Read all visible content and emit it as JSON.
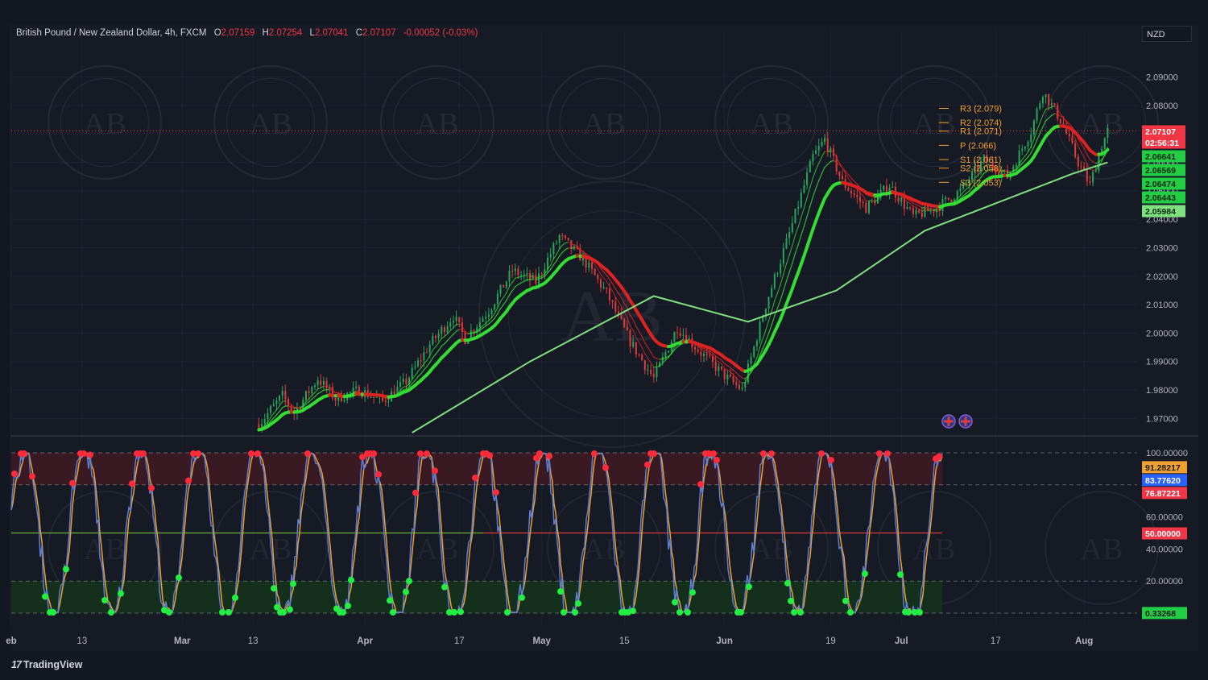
{
  "header": {
    "symbol": "British Pound / New Zealand Dollar, 4h, FXCM",
    "open_label": "O",
    "open": "2.07159",
    "high_label": "H",
    "high": "2.07254",
    "low_label": "L",
    "low": "2.07041",
    "close_label": "C",
    "close": "2.07107",
    "change": "-0.00052 (-0.03%)"
  },
  "currency_selector": "NZD",
  "branding": {
    "logo_text": "TradingView",
    "watermark": "AB"
  },
  "colors": {
    "background": "#131722",
    "grid": "#1f2330",
    "bull_candle": "#26a65b",
    "bear_candle": "#e03a3a",
    "ema_green": "#33dd33",
    "ema_red": "#dd2222",
    "long_ma": "#7ee07e",
    "pivot_label": "#f0a030",
    "stoch_k": "#5b7fd6",
    "stoch_d": "#f0a030",
    "overbought_zone": "#3a1a22",
    "oversold_zone": "#14301c"
  },
  "chart_data": [
    {
      "type": "line",
      "name": "price",
      "ylim": [
        1.965,
        2.095
      ],
      "y_ticks": [
        "2.09000",
        "2.08000",
        "2.07000",
        "2.06000",
        "2.05000",
        "2.04000",
        "2.03000",
        "2.02000",
        "2.01000",
        "2.00000",
        "1.99000",
        "1.98000",
        "1.97000"
      ],
      "x_ticks": [
        "eb",
        "13",
        "Mar",
        "13",
        "Apr",
        "17",
        "May",
        "15",
        "Jun",
        "19",
        "Jul",
        "17",
        "Aug"
      ],
      "x_domain": [
        "2024-02-01",
        "2024-08-10"
      ],
      "x_tick_dates": [
        "2024-02-01",
        "2024-02-13",
        "2024-03-01",
        "2024-03-13",
        "2024-04-01",
        "2024-04-17",
        "2024-05-01",
        "2024-05-15",
        "2024-06-01",
        "2024-06-19",
        "2024-07-01",
        "2024-07-17",
        "2024-08-01"
      ],
      "price_path": [
        [
          "2024-03-14",
          1.968
        ],
        [
          "2024-03-18",
          1.978
        ],
        [
          "2024-03-20",
          1.972
        ],
        [
          "2024-03-24",
          1.984
        ],
        [
          "2024-03-27",
          1.977
        ],
        [
          "2024-03-31",
          1.98
        ],
        [
          "2024-04-04",
          1.976
        ],
        [
          "2024-04-08",
          1.983
        ],
        [
          "2024-04-12",
          1.996
        ],
        [
          "2024-04-16",
          2.006
        ],
        [
          "2024-04-18",
          1.998
        ],
        [
          "2024-04-22",
          2.008
        ],
        [
          "2024-04-26",
          2.022
        ],
        [
          "2024-04-30",
          2.018
        ],
        [
          "2024-05-04",
          2.034
        ],
        [
          "2024-05-08",
          2.026
        ],
        [
          "2024-05-12",
          2.014
        ],
        [
          "2024-05-16",
          1.997
        ],
        [
          "2024-05-20",
          1.984
        ],
        [
          "2024-05-24",
          2.002
        ],
        [
          "2024-05-28",
          1.993
        ],
        [
          "2024-06-01",
          1.985
        ],
        [
          "2024-06-04",
          1.98
        ],
        [
          "2024-06-08",
          2.01
        ],
        [
          "2024-06-12",
          2.035
        ],
        [
          "2024-06-16",
          2.062
        ],
        [
          "2024-06-18",
          2.068
        ],
        [
          "2024-06-21",
          2.053
        ],
        [
          "2024-06-25",
          2.044
        ],
        [
          "2024-06-29",
          2.052
        ],
        [
          "2024-07-03",
          2.041
        ],
        [
          "2024-07-07",
          2.044
        ],
        [
          "2024-07-11",
          2.05
        ],
        [
          "2024-07-15",
          2.061
        ],
        [
          "2024-07-19",
          2.055
        ],
        [
          "2024-07-23",
          2.071
        ],
        [
          "2024-07-25",
          2.085
        ],
        [
          "2024-07-28",
          2.075
        ],
        [
          "2024-07-31",
          2.06
        ],
        [
          "2024-08-02",
          2.052
        ],
        [
          "2024-08-04",
          2.066
        ],
        [
          "2024-08-05",
          2.071
        ]
      ],
      "long_ma_path": [
        [
          "2024-04-09",
          1.965
        ],
        [
          "2024-04-29",
          1.99
        ],
        [
          "2024-05-20",
          2.013
        ],
        [
          "2024-06-05",
          2.004
        ],
        [
          "2024-06-20",
          2.015
        ],
        [
          "2024-07-05",
          2.036
        ],
        [
          "2024-07-20",
          2.048
        ],
        [
          "2024-07-30",
          2.056
        ],
        [
          "2024-08-05",
          2.06
        ]
      ],
      "pivots": [
        {
          "label": "R3 (2.079)",
          "value": 2.079
        },
        {
          "label": "R2 (2.074)",
          "value": 2.074
        },
        {
          "label": "R1 (2.071)",
          "value": 2.071
        },
        {
          "label": "P (2.066)",
          "value": 2.066
        },
        {
          "label": "S1 (2.061)",
          "value": 2.061
        },
        {
          "label": "S2 (2.058)",
          "value": 2.058
        },
        {
          "label": "S3 (2.053)",
          "value": 2.053
        }
      ],
      "price_badges": [
        {
          "text": "2.07107",
          "value": 2.07107,
          "color": "#f23645"
        },
        {
          "text": "02:56:31",
          "value": 2.07107,
          "color": "#f23645",
          "sub": true
        },
        {
          "text": "2.06641",
          "value": 2.06641,
          "color": "#22cc44"
        },
        {
          "text": "2.06569",
          "value": 2.06569,
          "color": "#22cc44"
        },
        {
          "text": "2.06474",
          "value": 2.06474,
          "color": "#22cc44"
        },
        {
          "text": "2.06443",
          "value": 2.06443,
          "color": "#22cc44"
        },
        {
          "text": "2.05984",
          "value": 2.05984,
          "color": "#7ee07e"
        }
      ]
    },
    {
      "type": "line",
      "name": "stochastic",
      "ylim": [
        0,
        100
      ],
      "y_ticks": [
        "100.00000",
        "60.00000",
        "40.00000",
        "20.00000"
      ],
      "bands": {
        "upper": 80,
        "lower": 20,
        "mid": 50
      },
      "value_badges": [
        {
          "text": "91.28217",
          "value": 91.28217,
          "color": "#f0a030"
        },
        {
          "text": "83.77620",
          "value": 83.7762,
          "color": "#2962ff"
        },
        {
          "text": "76.87221",
          "value": 76.87221,
          "color": "#f23645"
        },
        {
          "text": "50.00000",
          "value": 50,
          "color": "#f23645"
        },
        {
          "text": "0.33268",
          "value": 0.33268,
          "color": "#22cc44"
        }
      ]
    }
  ]
}
